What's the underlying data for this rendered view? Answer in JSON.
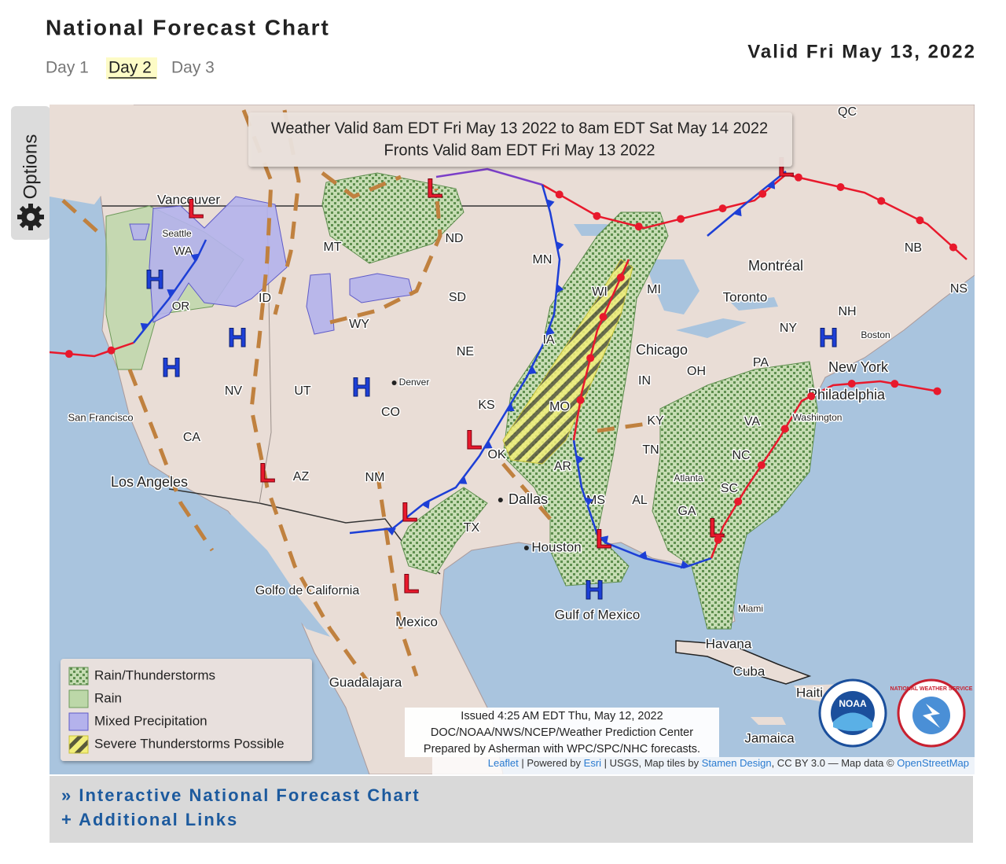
{
  "header": {
    "title": "National Forecast Chart",
    "tabs": [
      "Day 1",
      "Day 2",
      "Day 3"
    ],
    "valid": "Valid Fri May 13, 2022"
  },
  "options": "Options",
  "map": {
    "banner": [
      "Weather Valid 8am EDT Fri May 13 2022 to 8am EDT Sat May 14 2022",
      "Fronts Valid 8am EDT Fri May 13 2022"
    ],
    "labels": [
      "Vancouver",
      "Seattle",
      "WA",
      "OR",
      "MT",
      "ND",
      "MN",
      "SD",
      "WY",
      "NE",
      "ID",
      "NV",
      "UT",
      "CO",
      "Denver",
      "KS",
      "MO",
      "OK",
      "AR",
      "TX",
      "NM",
      "AZ",
      "CA",
      "San Francisco",
      "Los Angeles",
      "Dallas",
      "Houston",
      "MS",
      "AL",
      "GA",
      "TN",
      "KY",
      "IN",
      "OH",
      "Chicago",
      "MI",
      "WI",
      "IA",
      "PA",
      "New York",
      "Philadelphia",
      "Washington",
      "VA",
      "NC",
      "SC",
      "Atlanta",
      "Miami",
      "NY",
      "NH",
      "Boston",
      "NB",
      "NS",
      "QC",
      "Montréal",
      "Toronto",
      "Golfo de California",
      "Gulf of Mexico",
      "Mexico",
      "Guadalajara",
      "Havana",
      "Cuba",
      "Haiti",
      "Jamaica"
    ],
    "pressure_centers": [
      "H",
      "H",
      "H",
      "H",
      "H",
      "H",
      "L",
      "L",
      "L",
      "L",
      "L",
      "L",
      "L",
      "L",
      "L"
    ],
    "legend": [
      "Rain/Thunderstorms",
      "Rain",
      "Mixed Precipitation",
      "Severe Thunderstorms Possible"
    ],
    "issued": [
      "Issued 4:25 AM EDT Thu, May 12, 2022",
      "DOC/NOAA/NWS/NCEP/Weather Prediction Center",
      "Prepared by Asherman with WPC/SPC/NHC forecasts."
    ],
    "attribution": [
      "Leaflet",
      " | Powered by ",
      "Esri",
      " | USGS, Map tiles by ",
      "Stamen Design",
      ", CC BY 3.0 — Map data © ",
      "OpenStreetMap"
    ],
    "logos": [
      "NOAA",
      "NATIONAL WEATHER SERVICE"
    ]
  },
  "links": [
    "» Interactive National Forecast Chart",
    "+ Additional Links"
  ]
}
